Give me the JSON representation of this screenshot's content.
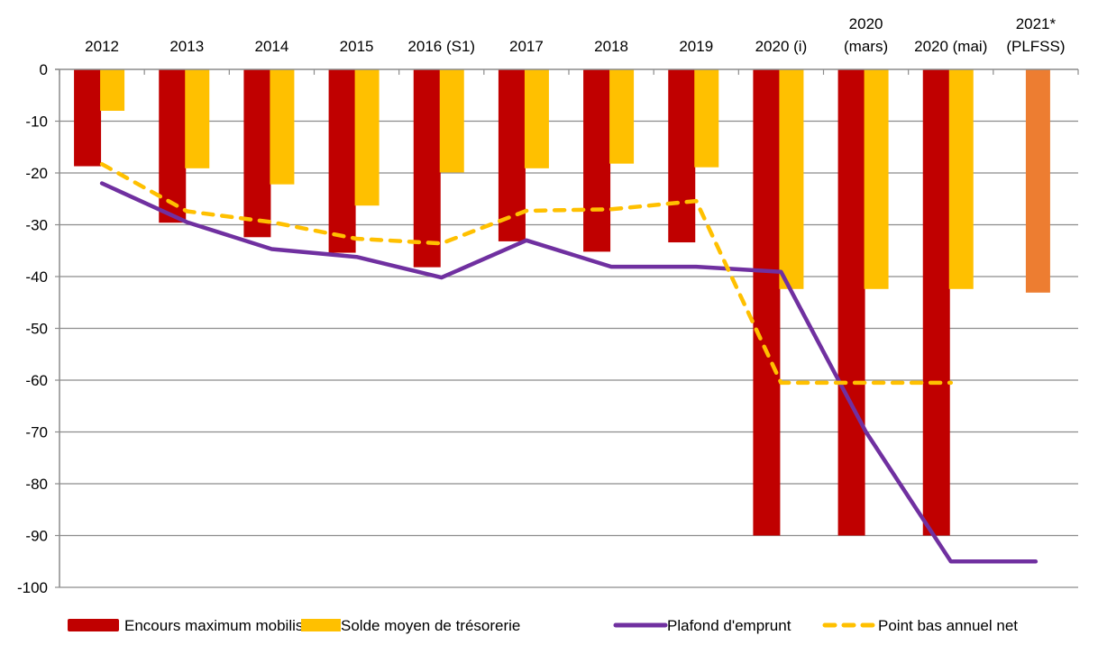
{
  "chart_data": {
    "type": "bar",
    "title": "",
    "xlabel": "",
    "ylabel": "",
    "ylim": [
      -100,
      0
    ],
    "yticks": [
      0,
      -10,
      -20,
      -30,
      -40,
      -50,
      -60,
      -70,
      -80,
      -90,
      -100
    ],
    "grid": true,
    "legend_position": "bottom",
    "x_axis_position": "top",
    "categories": [
      [
        "2012"
      ],
      [
        "2013"
      ],
      [
        "2014"
      ],
      [
        "2015"
      ],
      [
        "2016 (S1)"
      ],
      [
        "2017"
      ],
      [
        "2018"
      ],
      [
        "2019"
      ],
      [
        "2020 (i)"
      ],
      [
        "2020",
        "(mars)"
      ],
      [
        "2020 (mai)"
      ],
      [
        "2021*",
        "(PLFSS)"
      ]
    ],
    "series": [
      {
        "name": "Encours maximum mobilisé",
        "kind": "bar",
        "color": "#C00000",
        "values": [
          -18.7,
          -29.6,
          -32.4,
          -35.4,
          -38.2,
          -33.2,
          -35.2,
          -33.4,
          -90,
          -90,
          -90,
          null
        ]
      },
      {
        "name": "Solde moyen de trésorerie",
        "kind": "bar",
        "color": "#FFC000",
        "point_colors": [
          null,
          null,
          null,
          null,
          null,
          null,
          null,
          null,
          null,
          null,
          null,
          "#ED7D31"
        ],
        "values": [
          -8.0,
          -19.1,
          -22.2,
          -26.3,
          -19.9,
          -19.1,
          -18.2,
          -18.9,
          -42.4,
          -42.4,
          -42.4,
          -43.1
        ]
      },
      {
        "name": "Plafond d'emprunt",
        "kind": "line",
        "style": "solid",
        "color": "#7030A0",
        "values": [
          -22.0,
          -29.5,
          -34.7,
          -36.2,
          -40.2,
          -33.0,
          -38.1,
          -38.1,
          -39.1,
          -70.0,
          -95.0,
          -95.0
        ]
      },
      {
        "name": "Point bas annuel net",
        "kind": "line",
        "style": "dashed",
        "color": "#FFC000",
        "values": [
          -18.3,
          -27.4,
          -29.5,
          -32.7,
          -33.6,
          -27.3,
          -27.0,
          -25.4,
          -60.5,
          -60.5,
          -60.5,
          null
        ]
      }
    ]
  }
}
